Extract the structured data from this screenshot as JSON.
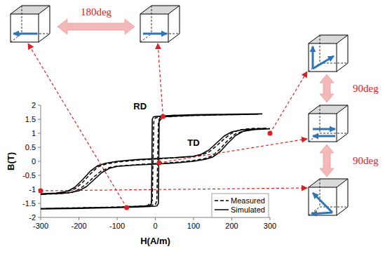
{
  "chart_data": {
    "type": "line",
    "x_label": "H(A/m)",
    "y_label": "B(T)",
    "xlim": [
      -300,
      300
    ],
    "xticks": [
      -300,
      -200,
      -100,
      0,
      100,
      200,
      300
    ],
    "ylim": [
      -2,
      2
    ],
    "yticks": [
      2,
      1.5,
      1,
      0.5,
      0,
      -0.5,
      -1,
      -1.5,
      -2
    ],
    "grid": false,
    "legend": "lower right",
    "series": [
      {
        "name": "Measured",
        "color": "#000000",
        "line_style": "dashed",
        "x": [
          270,
          100,
          30,
          0,
          -4,
          -6,
          -8,
          -20,
          -100,
          -300,
          -100,
          -20,
          0,
          4,
          6,
          8,
          20,
          100,
          270
        ],
        "values": [
          1.68,
          1.64,
          1.6,
          1.55,
          1.4,
          0,
          -1.4,
          -1.58,
          -1.64,
          -1.68,
          -1.63,
          -1.58,
          -1.55,
          -1.4,
          0,
          1.4,
          1.58,
          1.63,
          1.68
        ]
      },
      {
        "name": "Simulated",
        "color": "#000000",
        "line_style": "solid",
        "x": [
          280,
          200,
          100,
          50,
          15,
          0,
          -5,
          -8,
          -9,
          -10,
          -15,
          -50,
          -100,
          -200,
          -300,
          -200,
          -100,
          -50,
          -15,
          0,
          5,
          8,
          9,
          10,
          15,
          50,
          100,
          200,
          280
        ],
        "values": [
          1.69,
          1.68,
          1.66,
          1.64,
          1.61,
          1.6,
          1.58,
          1.5,
          0,
          -1.5,
          -1.58,
          -1.62,
          -1.64,
          -1.67,
          -1.7,
          -1.68,
          -1.65,
          -1.63,
          -1.61,
          -1.6,
          -1.58,
          -1.5,
          0,
          1.5,
          1.59,
          1.62,
          1.65,
          1.68,
          1.69
        ]
      },
      {
        "name": "Measured",
        "color": "#000000",
        "line_style": "dashed",
        "x": [
          290,
          250,
          220,
          200,
          180,
          160,
          140,
          120,
          100,
          50,
          0,
          -50,
          -100,
          -130,
          -150,
          -170,
          -190,
          -210,
          -240,
          -300,
          -260,
          -220,
          -200,
          -180,
          -160,
          -140,
          -120,
          -100,
          -50,
          0,
          50,
          100,
          130,
          150,
          170,
          190,
          210,
          240,
          290
        ],
        "values": [
          1.18,
          1.17,
          1.12,
          1.0,
          0.8,
          0.55,
          0.33,
          0.22,
          0.17,
          0.12,
          0.08,
          0.04,
          -0.03,
          -0.1,
          -0.2,
          -0.45,
          -0.75,
          -0.98,
          -1.12,
          -1.18,
          -1.16,
          -1.12,
          -1.0,
          -0.8,
          -0.55,
          -0.33,
          -0.22,
          -0.17,
          -0.12,
          -0.08,
          -0.04,
          0.03,
          0.1,
          0.2,
          0.45,
          0.75,
          0.98,
          1.12,
          1.18
        ]
      },
      {
        "name": "Simulated",
        "color": "#000000",
        "line_style": "solid",
        "x": [
          300,
          260,
          230,
          200,
          180,
          160,
          140,
          120,
          100,
          50,
          0,
          -50,
          -100,
          -130,
          -150,
          -170,
          -190,
          -210,
          -230,
          -260,
          -300,
          -260,
          -230,
          -200,
          -180,
          -160,
          -140,
          -120,
          -100,
          -50,
          0,
          50,
          100,
          130,
          150,
          170,
          190,
          210,
          230,
          260,
          300
        ],
        "values": [
          1.16,
          1.15,
          1.13,
          1.05,
          0.9,
          0.65,
          0.4,
          0.25,
          0.18,
          0.13,
          0.1,
          0.06,
          0,
          -0.07,
          -0.15,
          -0.35,
          -0.65,
          -0.92,
          -1.07,
          -1.13,
          -1.16,
          -1.15,
          -1.13,
          -1.05,
          -0.9,
          -0.65,
          -0.4,
          -0.25,
          -0.18,
          -0.13,
          -0.1,
          -0.06,
          0,
          0.07,
          0.15,
          0.35,
          0.65,
          0.92,
          1.07,
          1.13,
          1.16
        ]
      }
    ],
    "points": [
      {
        "x": -75,
        "y": -1.65
      },
      {
        "x": 20,
        "y": 1.6
      },
      {
        "x": 300,
        "y": 1.0
      },
      {
        "x": 10,
        "y": -0.05
      },
      {
        "x": -300,
        "y": -1.05
      }
    ],
    "annotations": [
      {
        "text": "RD",
        "x": -40,
        "y": 1.85
      },
      {
        "text": "TD",
        "x": 100,
        "y": 0.55
      },
      {
        "text": "180deg"
      },
      {
        "text": "90deg"
      },
      {
        "text": "90deg"
      }
    ]
  }
}
